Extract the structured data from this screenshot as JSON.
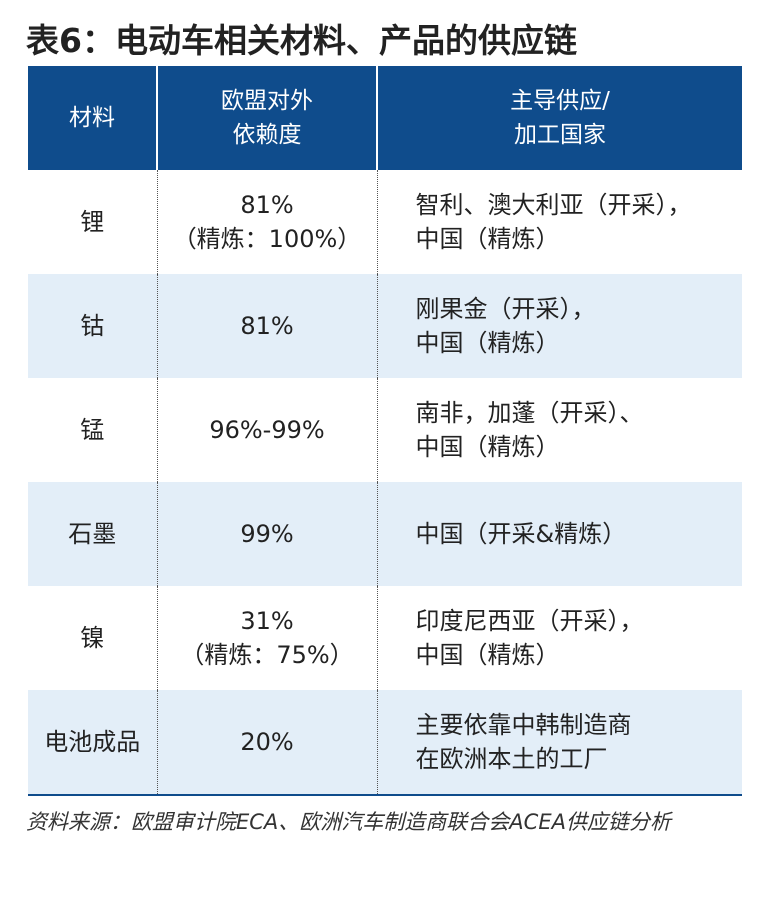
{
  "title": "表6：电动车相关材料、产品的供应链",
  "table": {
    "headers": {
      "material": "材料",
      "dependency": [
        "欧盟对外",
        "依赖度"
      ],
      "supplier": [
        "主导供应/",
        "加工国家"
      ]
    },
    "rows": [
      {
        "material": "锂",
        "dependency": [
          "81%",
          "（精炼：100%）"
        ],
        "supplier": [
          "智利、澳大利亚（开采），",
          "中国（精炼）"
        ]
      },
      {
        "material": "钴",
        "dependency": [
          "81%"
        ],
        "supplier": [
          "刚果金（开采），",
          "中国（精炼）"
        ]
      },
      {
        "material": "锰",
        "dependency": [
          "96%-99%"
        ],
        "supplier": [
          "南非，加蓬（开采）、",
          "中国（精炼）"
        ]
      },
      {
        "material": "石墨",
        "dependency": [
          "99%"
        ],
        "supplier": [
          "中国（开采&精炼）"
        ]
      },
      {
        "material": "镍",
        "dependency": [
          "31%",
          "（精炼：75%）"
        ],
        "supplier": [
          "印度尼西亚（开采），",
          "中国（精炼）"
        ]
      },
      {
        "material": "电池成品",
        "dependency": [
          "20%"
        ],
        "supplier": [
          "主要依靠中韩制造商",
          "在欧洲本土的工厂"
        ]
      }
    ]
  },
  "source": "资料来源：欧盟审计院ECA、欧洲汽车制造商联合会ACEA供应链分析",
  "colors": {
    "header_bg": "#0f4c8c",
    "row_alt_bg": "#e3eef8"
  }
}
